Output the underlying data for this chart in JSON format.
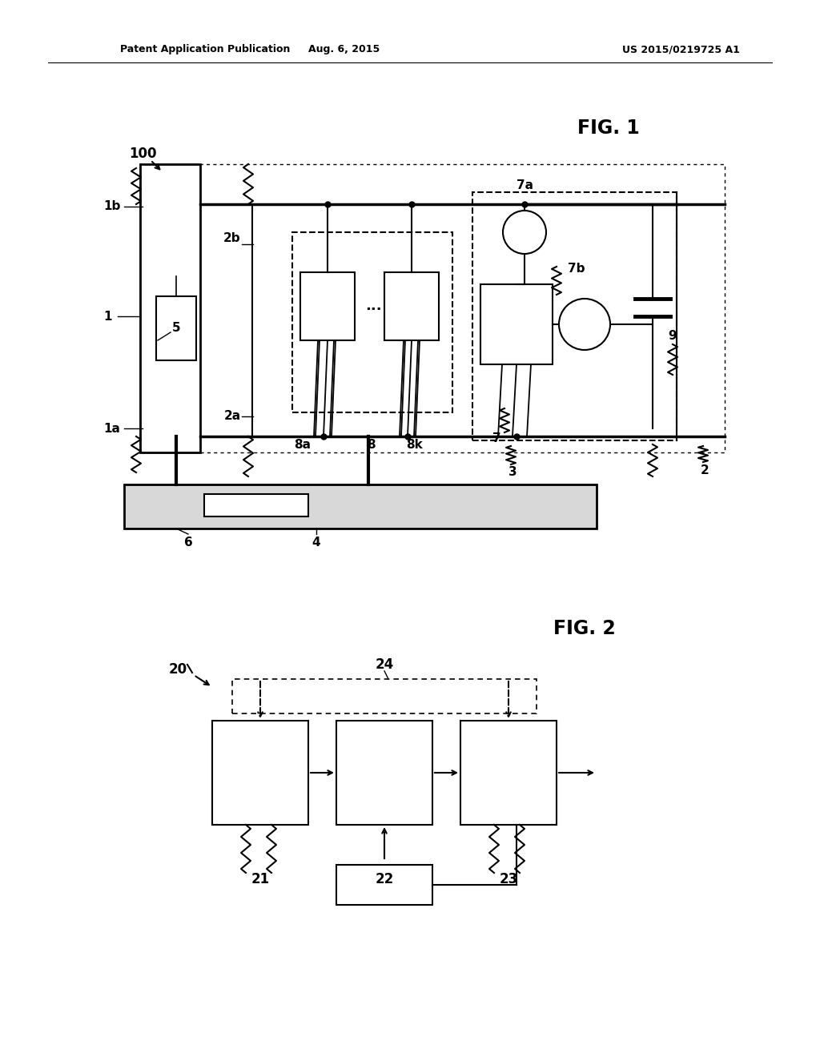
{
  "header_left": "Patent Application Publication",
  "header_center": "Aug. 6, 2015",
  "header_right": "US 2015/0219725 A1",
  "fig1_label": "FIG. 1",
  "fig2_label": "FIG. 2",
  "bg_color": "#ffffff",
  "line_color": "#000000"
}
